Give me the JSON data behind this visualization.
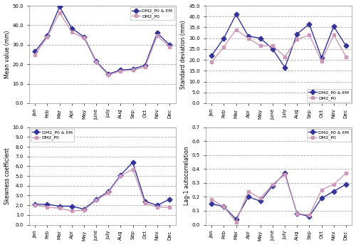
{
  "months": [
    "Jan",
    "Feb",
    "Mar",
    "Apr",
    "May",
    "June",
    "July",
    "Aug",
    "Sep",
    "Oct",
    "Nov",
    "Dec"
  ],
  "mean_em": [
    26.5,
    34.5,
    49.5,
    38.5,
    34.0,
    21.5,
    15.0,
    17.0,
    17.5,
    19.5,
    36.0,
    30.0
  ],
  "mean_p0": [
    25.0,
    34.0,
    46.5,
    36.5,
    33.5,
    21.0,
    14.5,
    16.5,
    17.0,
    18.5,
    34.5,
    29.0
  ],
  "std_em": [
    22.0,
    30.0,
    41.0,
    31.0,
    30.0,
    25.0,
    16.5,
    32.0,
    36.5,
    21.0,
    35.5,
    26.5
  ],
  "std_p0": [
    19.0,
    26.0,
    34.0,
    30.0,
    26.5,
    26.5,
    21.5,
    29.5,
    31.5,
    19.5,
    31.5,
    21.5
  ],
  "skew_em": [
    2.1,
    2.1,
    1.9,
    1.9,
    1.6,
    2.6,
    3.4,
    5.1,
    6.4,
    2.4,
    2.0,
    2.6
  ],
  "skew_p0": [
    2.0,
    1.8,
    1.7,
    1.4,
    1.5,
    2.5,
    3.3,
    5.0,
    5.7,
    2.2,
    1.8,
    1.8
  ],
  "lag1_em": [
    0.15,
    0.13,
    0.04,
    0.2,
    0.17,
    0.28,
    0.37,
    0.08,
    0.06,
    0.19,
    0.24,
    0.29
  ],
  "lag1_p0": [
    0.18,
    0.13,
    0.02,
    0.24,
    0.19,
    0.29,
    0.36,
    0.08,
    0.07,
    0.25,
    0.29,
    0.37
  ],
  "color_em": "#333399",
  "color_p0": "#cc99bb",
  "marker_em": "D",
  "marker_p0": "s",
  "mean_ylim": [
    0,
    50
  ],
  "mean_yticks": [
    0.0,
    10.0,
    20.0,
    30.0,
    40.0,
    50.0
  ],
  "std_ylim": [
    0,
    45
  ],
  "std_yticks": [
    0.0,
    5.0,
    10.0,
    15.0,
    20.0,
    25.0,
    30.0,
    35.0,
    40.0,
    45.0
  ],
  "skew_ylim": [
    0,
    10
  ],
  "skew_yticks": [
    0.0,
    1.0,
    2.0,
    3.0,
    4.0,
    5.0,
    6.0,
    7.0,
    8.0,
    9.0,
    10.0
  ],
  "lag1_ylim": [
    0,
    0.7
  ],
  "lag1_yticks": [
    0.0,
    0.1,
    0.2,
    0.3,
    0.4,
    0.5,
    0.6,
    0.7
  ],
  "label_em": "DM2_P0 & EM",
  "label_p0": "DM2_P0",
  "ylabel_mean": "Mean value (mm)",
  "ylabel_std": "Standard deviation (mm)",
  "ylabel_skew": "Skewness coefficient",
  "ylabel_lag1": "Lag-1 autocorrelation",
  "bg_color": "#ffffff",
  "grid_color": "#aaaaaa",
  "line_width": 1.0,
  "marker_size": 3.5
}
